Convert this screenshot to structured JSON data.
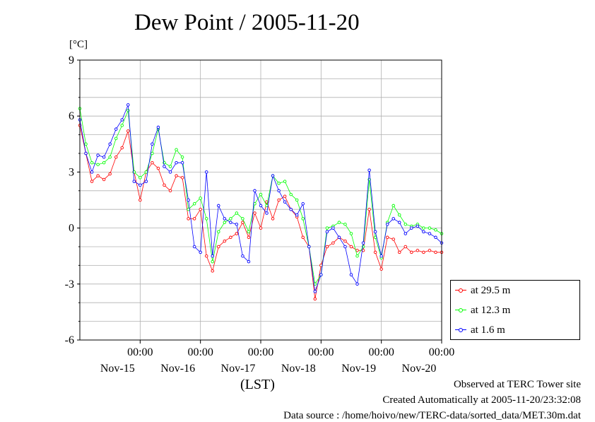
{
  "title": "Dew Point / 2005-11-20",
  "unit_label": "[°C]",
  "xaxis_label": "(LST)",
  "footer": {
    "line1": "Observed at TERC Tower site",
    "line2": "Created Automatically at 2005-11-20/23:32:08",
    "line3": "Data source : /home/hoivo/new/TERC-data/sorted_data/MET.30m.dat"
  },
  "chart_data": {
    "type": "line",
    "ylim": [
      -6,
      9
    ],
    "yticks": [
      9,
      6,
      3,
      0,
      -3,
      -6
    ],
    "xlim": [
      0,
      6
    ],
    "xticks": [
      {
        "time": "00:00",
        "date": "Nov-15",
        "x": 1
      },
      {
        "time": "00:00",
        "date": "Nov-16",
        "x": 2
      },
      {
        "time": "00:00",
        "date": "Nov-17",
        "x": 3
      },
      {
        "time": "00:00",
        "date": "Nov-18",
        "x": 4
      },
      {
        "time": "00:00",
        "date": "Nov-19",
        "x": 5
      },
      {
        "time": "00:00",
        "date": "Nov-20",
        "x": 6
      }
    ],
    "grid": true,
    "legend_position": "bottom-right outside",
    "series": [
      {
        "name": "at 29.5 m",
        "color": "#ff0000",
        "x": [
          0.0,
          0.1,
          0.2,
          0.3,
          0.4,
          0.5,
          0.6,
          0.7,
          0.8,
          0.9,
          1.0,
          1.1,
          1.2,
          1.3,
          1.4,
          1.5,
          1.6,
          1.7,
          1.8,
          1.9,
          2.0,
          2.1,
          2.2,
          2.3,
          2.4,
          2.5,
          2.6,
          2.7,
          2.8,
          2.9,
          3.0,
          3.1,
          3.2,
          3.3,
          3.4,
          3.5,
          3.6,
          3.7,
          3.8,
          3.9,
          4.0,
          4.1,
          4.2,
          4.3,
          4.4,
          4.5,
          4.6,
          4.7,
          4.8,
          4.9,
          5.0,
          5.1,
          5.2,
          5.3,
          5.4,
          5.5,
          5.6,
          5.7,
          5.8,
          5.9,
          6.0
        ],
        "values": [
          5.5,
          4.0,
          2.5,
          2.8,
          2.6,
          2.9,
          3.8,
          4.3,
          5.2,
          3.0,
          1.5,
          3.0,
          3.5,
          3.2,
          2.3,
          2.0,
          2.8,
          2.7,
          0.5,
          0.5,
          1.0,
          -1.5,
          -2.3,
          -1.0,
          -0.7,
          -0.5,
          -0.3,
          0.3,
          -0.5,
          0.8,
          0.0,
          1.4,
          0.5,
          1.5,
          1.7,
          1.0,
          0.6,
          -0.5,
          -1.0,
          -3.8,
          -2.0,
          -1.0,
          -0.8,
          -0.5,
          -0.7,
          -1.0,
          -1.2,
          -1.2,
          1.0,
          -1.3,
          -2.2,
          -0.5,
          -0.6,
          -1.3,
          -1.0,
          -1.3,
          -1.2,
          -1.3,
          -1.2,
          -1.3,
          -1.3
        ]
      },
      {
        "name": "at 12.3 m",
        "color": "#00ff00",
        "x": [
          0.0,
          0.1,
          0.2,
          0.3,
          0.4,
          0.5,
          0.6,
          0.7,
          0.8,
          0.9,
          1.0,
          1.1,
          1.2,
          1.3,
          1.4,
          1.5,
          1.6,
          1.7,
          1.8,
          1.9,
          2.0,
          2.1,
          2.2,
          2.3,
          2.4,
          2.5,
          2.6,
          2.7,
          2.8,
          2.9,
          3.0,
          3.1,
          3.2,
          3.3,
          3.4,
          3.5,
          3.6,
          3.7,
          3.8,
          3.9,
          4.0,
          4.1,
          4.2,
          4.3,
          4.4,
          4.5,
          4.6,
          4.7,
          4.8,
          4.9,
          5.0,
          5.1,
          5.2,
          5.3,
          5.4,
          5.5,
          5.6,
          5.7,
          5.8,
          5.9,
          6.0
        ],
        "values": [
          6.4,
          4.5,
          3.5,
          3.4,
          3.5,
          3.8,
          4.8,
          5.5,
          6.3,
          3.0,
          2.7,
          3.0,
          4.0,
          5.3,
          3.5,
          3.3,
          4.2,
          3.8,
          1.0,
          1.3,
          1.6,
          0.5,
          -1.8,
          -0.2,
          0.3,
          0.5,
          0.8,
          0.5,
          -0.2,
          1.3,
          1.8,
          1.2,
          2.8,
          2.4,
          2.5,
          1.8,
          1.5,
          0.5,
          -1.0,
          -3.0,
          -2.5,
          0.0,
          0.1,
          0.3,
          0.2,
          -0.3,
          -1.5,
          -1.0,
          2.6,
          -0.5,
          -1.6,
          0.3,
          1.2,
          0.7,
          0.2,
          0.1,
          0.2,
          0.0,
          0.0,
          -0.1,
          -0.3
        ]
      },
      {
        "name": "at 1.6 m",
        "color": "#0000ff",
        "x": [
          0.0,
          0.1,
          0.2,
          0.3,
          0.4,
          0.5,
          0.6,
          0.7,
          0.8,
          0.9,
          1.0,
          1.1,
          1.2,
          1.3,
          1.4,
          1.5,
          1.6,
          1.7,
          1.8,
          1.9,
          2.0,
          2.1,
          2.2,
          2.3,
          2.4,
          2.5,
          2.6,
          2.7,
          2.8,
          2.9,
          3.0,
          3.1,
          3.2,
          3.3,
          3.4,
          3.5,
          3.6,
          3.7,
          3.8,
          3.9,
          4.0,
          4.1,
          4.2,
          4.3,
          4.4,
          4.5,
          4.6,
          4.7,
          4.8,
          4.9,
          5.0,
          5.1,
          5.2,
          5.3,
          5.4,
          5.5,
          5.6,
          5.7,
          5.8,
          5.9,
          6.0
        ],
        "values": [
          5.8,
          4.0,
          3.0,
          3.9,
          3.8,
          4.5,
          5.3,
          5.8,
          6.6,
          2.5,
          2.3,
          2.5,
          4.5,
          5.4,
          3.3,
          3.0,
          3.5,
          3.5,
          1.5,
          -1.0,
          -1.3,
          3.0,
          -1.5,
          1.2,
          0.5,
          0.3,
          0.2,
          -1.5,
          -1.8,
          2.0,
          1.2,
          0.8,
          2.8,
          2.0,
          1.4,
          1.0,
          0.7,
          1.3,
          -1.0,
          -3.4,
          -2.5,
          -0.2,
          0.0,
          -0.5,
          -1.0,
          -2.5,
          -3.0,
          -0.8,
          3.1,
          -0.2,
          -1.5,
          0.2,
          0.5,
          0.3,
          -0.3,
          0.0,
          0.1,
          -0.2,
          -0.3,
          -0.5,
          -0.8
        ]
      }
    ]
  }
}
